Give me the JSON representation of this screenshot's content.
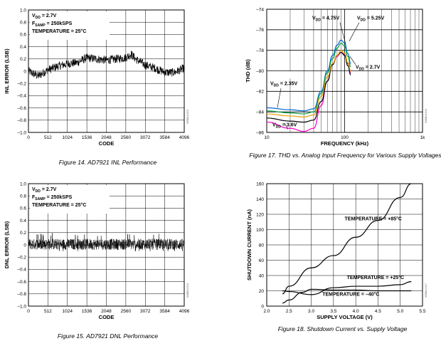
{
  "chart_data": [
    {
      "id": "inl",
      "type": "line",
      "title": "",
      "xlabel": "CODE",
      "ylabel": "INL ERROR (LSB)",
      "xlim": [
        0,
        4096
      ],
      "ylim": [
        -1.0,
        1.0
      ],
      "xticks": [
        "0",
        "512",
        "1024",
        "1536",
        "2048",
        "2560",
        "3072",
        "3584",
        "4096"
      ],
      "yticks": [
        "1.0",
        "0.8",
        "0.6",
        "0.4",
        "0.2",
        "0",
        "–0.2",
        "–0.4",
        "–0.6",
        "–0.8",
        "–1.0"
      ],
      "annotations": [
        "V",
        "DD",
        " = 2.7V",
        "F",
        "SAMP",
        " = 250kSPS",
        "TEMPERATURE = 25°C"
      ],
      "series": [
        {
          "name": "INL",
          "envelope_x": [
            0,
            256,
            512,
            768,
            1024,
            1280,
            1536,
            1792,
            2048,
            2304,
            2560,
            2700,
            2816,
            3072,
            3328,
            3584,
            3840,
            4096
          ],
          "envelope_y": [
            0.0,
            -0.08,
            0.02,
            0.08,
            0.12,
            0.14,
            0.22,
            0.2,
            0.18,
            0.2,
            0.22,
            0.28,
            0.2,
            0.1,
            0.05,
            -0.02,
            -0.02,
            0.05
          ],
          "noise_amplitude": 0.07
        }
      ],
      "caption": "Figure 14. AD7921 INL Performance",
      "fig_id": "04586-0-013"
    },
    {
      "id": "dnl",
      "type": "line",
      "title": "",
      "xlabel": "CODE",
      "ylabel": "DNL ERROR (LSB)",
      "xlim": [
        0,
        4096
      ],
      "ylim": [
        -1.0,
        1.0
      ],
      "xticks": [
        "0",
        "512",
        "1024",
        "1536",
        "2048",
        "2560",
        "3072",
        "3584",
        "4096"
      ],
      "yticks": [
        "1.0",
        "0.8",
        "0.6",
        "0.4",
        "0.2",
        "0",
        "–0.2",
        "–0.4",
        "–0.6",
        "–0.8",
        "–1.0"
      ],
      "annotations": [
        "V",
        "DD",
        " = 2.7V",
        "F",
        "SAMP",
        " = 250kSPS",
        "TEMPERATURE = 25°C"
      ],
      "series": [
        {
          "name": "DNL",
          "band": [
            -0.08,
            0.1
          ],
          "spike_max": 0.2,
          "spike_min": -0.1
        }
      ],
      "caption": "Figure 15. AD7921 DNL Performance",
      "fig_id": "04586-0-014"
    },
    {
      "id": "thd",
      "type": "line",
      "title": "",
      "xlabel": "FREQUENCY (kHz)",
      "ylabel": "THD (dB)",
      "xscale": "log",
      "xlim": [
        10,
        1000
      ],
      "ylim": [
        -86,
        -74
      ],
      "xticks": [
        "10",
        "100",
        "1k"
      ],
      "yticks": [
        "–74",
        "–76",
        "–78",
        "–80",
        "–82",
        "–84",
        "–86"
      ],
      "series": [
        {
          "name": "VDD = 5.25V",
          "color": "#0066cc",
          "x": [
            10,
            20,
            30,
            40,
            50,
            60,
            70,
            80,
            90,
            100,
            110,
            120
          ],
          "y": [
            -83.6,
            -83.8,
            -83.9,
            -83.7,
            -82.0,
            -80.0,
            -78.5,
            -77.5,
            -77.0,
            -77.3,
            -78.3,
            -79.3
          ]
        },
        {
          "name": "VDD = 4.75V",
          "color": "#00a040",
          "x": [
            10,
            20,
            30,
            40,
            50,
            60,
            70,
            80,
            90,
            100,
            110,
            120
          ],
          "y": [
            -83.9,
            -84.1,
            -84.2,
            -84.0,
            -82.2,
            -80.2,
            -78.8,
            -77.8,
            -77.3,
            -77.6,
            -78.6,
            -79.6
          ]
        },
        {
          "name": "VDD = 3.6V",
          "color": "#ff00cc",
          "x": [
            10,
            20,
            30,
            40,
            50,
            60,
            70,
            80,
            90,
            100,
            110,
            120
          ],
          "y": [
            -85.0,
            -85.6,
            -85.9,
            -85.6,
            -83.4,
            -81.0,
            -79.4,
            -78.6,
            -78.2,
            -78.4,
            -79.3,
            -80.2
          ]
        },
        {
          "name": "VDD = 2.35V",
          "color": "#000000",
          "x": [
            10,
            20,
            30,
            40,
            50,
            60,
            70,
            80,
            90,
            100,
            110,
            120
          ],
          "y": [
            -84.6,
            -84.9,
            -85.0,
            -84.8,
            -83.0,
            -81.0,
            -79.4,
            -78.5,
            -78.2,
            -78.5,
            -79.5,
            -80.4
          ]
        },
        {
          "name": "VDD = 2.7V",
          "color": "#e6a000",
          "x": [
            10,
            20,
            30,
            40,
            50,
            60,
            70,
            80,
            90,
            100,
            110,
            120
          ],
          "y": [
            -84.2,
            -84.4,
            -84.5,
            -84.3,
            -82.5,
            -80.6,
            -79.3,
            -78.5,
            -78.0,
            -78.3,
            -79.2,
            -80.0
          ]
        }
      ],
      "annotations": [
        "V",
        "DD",
        " = 4.75V",
        "V",
        "DD",
        " = 5.25V",
        "V",
        "DD",
        " = 2.7V",
        "V",
        "DD",
        " = 2.35V",
        "V",
        "DD",
        " = 3.6V"
      ],
      "caption": "Figure 17. THD vs. Analog Input Frequency for Various Supply Voltages",
      "fig_id": "04586-0-016"
    },
    {
      "id": "shutdown",
      "type": "line",
      "title": "",
      "xlabel": "SUPPLY VOLTAGE (V)",
      "ylabel": "SHUTDOWN CURRENT (nA)",
      "xlim": [
        2.0,
        5.5
      ],
      "ylim": [
        0,
        160
      ],
      "xticks": [
        "2.0",
        "2.5",
        "3.0",
        "3.5",
        "4.0",
        "4.5",
        "5.0",
        "5.5"
      ],
      "yticks": [
        "0",
        "20",
        "40",
        "60",
        "80",
        "100",
        "120",
        "140",
        "160"
      ],
      "series": [
        {
          "name": "TEMPERATURE = +85°C",
          "x": [
            2.35,
            2.5,
            3.0,
            3.5,
            4.0,
            4.5,
            5.0,
            5.25
          ],
          "y": [
            16,
            26,
            50,
            66,
            90,
            112,
            142,
            160
          ]
        },
        {
          "name": "TEMPERATURE = +25°C",
          "x": [
            2.35,
            2.5,
            3.0,
            3.5,
            4.0,
            4.5,
            5.0,
            5.25
          ],
          "y": [
            20,
            19,
            15,
            24,
            26,
            26,
            28,
            32
          ]
        },
        {
          "name": "TEMPERATURE = –40°C",
          "x": [
            2.35,
            2.5,
            2.8,
            3.0,
            3.5,
            4.0,
            4.5,
            5.0,
            5.25
          ],
          "y": [
            4,
            8,
            18,
            22,
            21,
            21,
            20,
            20,
            20
          ]
        }
      ],
      "caption": "Figure 18. Shutdown Current vs. Supply Voltage",
      "fig_id": "04586-0-017"
    }
  ]
}
